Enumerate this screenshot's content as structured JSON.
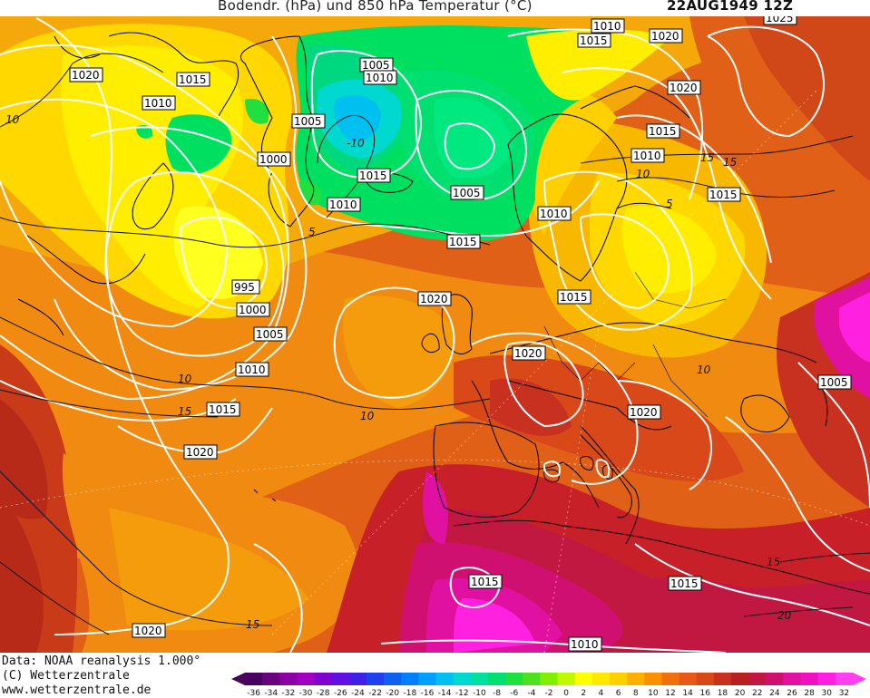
{
  "header": {
    "title": "Bodendr. (hPa) und 850 hPa Temperatur (°C)",
    "datetime": "22AUG1949 12Z"
  },
  "footer": {
    "data_source": "Data: NOAA reanalysis 1.000°",
    "copyright": "(C) Wetterzentrale",
    "url": "www.wetterzentrale.de"
  },
  "legend": {
    "ticks": [
      "-36",
      "-34",
      "-32",
      "-30",
      "-28",
      "-26",
      "-24",
      "-22",
      "-20",
      "-18",
      "-16",
      "-14",
      "-12",
      "-10",
      "-8",
      "-6",
      "-4",
      "-2",
      "0",
      "2",
      "4",
      "6",
      "8",
      "10",
      "12",
      "14",
      "16",
      "18",
      "20",
      "22",
      "24",
      "26",
      "28",
      "30",
      "32"
    ],
    "colors": [
      "#4a0060",
      "#6a007e",
      "#8a00a0",
      "#a000c0",
      "#8000d0",
      "#6010e0",
      "#4020e8",
      "#2040f0",
      "#1060f0",
      "#0080ff",
      "#00a0ff",
      "#00c0f0",
      "#00d8d0",
      "#00e0a0",
      "#00e070",
      "#20e040",
      "#50e020",
      "#80f000",
      "#c0f800",
      "#ffff00",
      "#ffe800",
      "#ffd000",
      "#ffb000",
      "#f89000",
      "#f07010",
      "#e85818",
      "#d84818",
      "#c83020",
      "#b82020",
      "#c01840",
      "#d01070",
      "#e010a0",
      "#f010c0",
      "#ff20e0",
      "#ff40f0"
    ]
  },
  "isobar_labels": [
    {
      "text": "1010"
    },
    {
      "text": "1015"
    },
    {
      "text": "1020"
    },
    {
      "text": "1025"
    },
    {
      "text": "1020"
    },
    {
      "text": "1015"
    },
    {
      "text": "1010"
    },
    {
      "text": "1005"
    },
    {
      "text": "1010"
    },
    {
      "text": "1005"
    },
    {
      "text": "1000"
    },
    {
      "text": "1015"
    },
    {
      "text": "1010"
    },
    {
      "text": "1005"
    },
    {
      "text": "1020"
    },
    {
      "text": "1015"
    },
    {
      "text": "1015"
    },
    {
      "text": "1010"
    },
    {
      "text": "1015"
    },
    {
      "text": "1020"
    },
    {
      "text": "1010"
    },
    {
      "text": "995"
    },
    {
      "text": "1000"
    },
    {
      "text": "1005"
    },
    {
      "text": "1010"
    },
    {
      "text": "1015"
    },
    {
      "text": "1020"
    },
    {
      "text": "1015"
    },
    {
      "text": "1020"
    },
    {
      "text": "1020"
    },
    {
      "text": "1005"
    },
    {
      "text": "1015"
    },
    {
      "text": "1015"
    },
    {
      "text": "1020"
    },
    {
      "text": "1010"
    }
  ],
  "isotherm_labels": [
    {
      "text": "10"
    },
    {
      "text": "-10"
    },
    {
      "text": "5"
    },
    {
      "text": "10"
    },
    {
      "text": "15"
    },
    {
      "text": "10"
    },
    {
      "text": "15"
    },
    {
      "text": "15"
    },
    {
      "text": "10"
    },
    {
      "text": "5"
    },
    {
      "text": "15"
    },
    {
      "text": "20"
    },
    {
      "text": "15"
    },
    {
      "text": "10"
    }
  ]
}
